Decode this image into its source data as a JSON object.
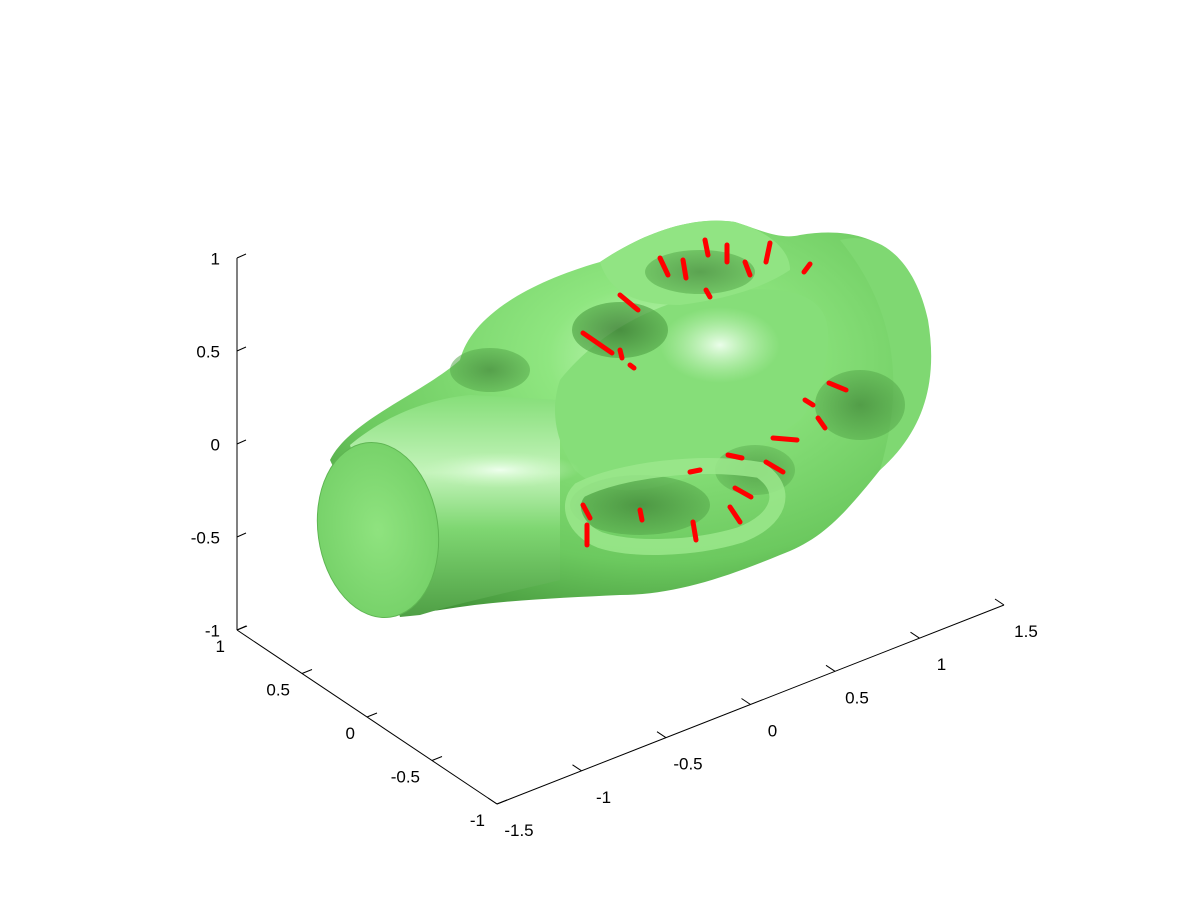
{
  "figure": {
    "background": "#ffffff",
    "surface_color": "#7fe070",
    "vector_color": "#ff0000",
    "axis_color": "#000000"
  },
  "axes": {
    "z_ticks": [
      "1",
      "0.5",
      "0",
      "-0.5",
      "-1"
    ],
    "y_ticks": [
      "1",
      "0.5",
      "0",
      "-0.5",
      "-1"
    ],
    "x_ticks": [
      "-1.5",
      "-1",
      "-0.5",
      "0",
      "0.5",
      "1",
      "1.5"
    ]
  }
}
